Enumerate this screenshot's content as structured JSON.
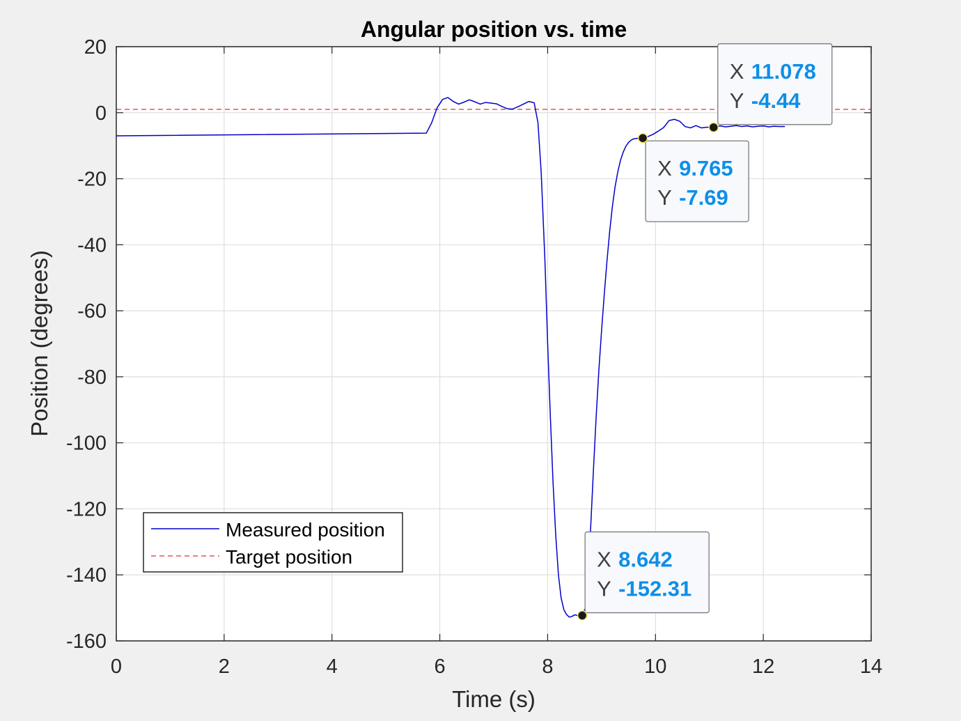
{
  "chart_data": {
    "type": "line",
    "title": "Angular position vs. time",
    "xlabel": "Time (s)",
    "ylabel": "Position (degrees)",
    "xlim": [
      0,
      14
    ],
    "ylim": [
      -160,
      20
    ],
    "xticks": [
      0,
      2,
      4,
      6,
      8,
      10,
      12,
      14
    ],
    "yticks": [
      20,
      0,
      -20,
      -40,
      -60,
      -80,
      -100,
      -120,
      -140,
      -160
    ],
    "grid": true,
    "legend": {
      "placement": "bottom-left"
    },
    "colors": {
      "measured": "#0000cc",
      "target": "#e8525a",
      "tip_value": "#0d8fe8"
    },
    "series": [
      {
        "name": "Measured position",
        "style": "solid",
        "x": [
          0,
          5.75,
          5.85,
          5.95,
          6.05,
          6.15,
          6.25,
          6.35,
          6.45,
          6.55,
          6.65,
          6.75,
          6.85,
          6.95,
          7.05,
          7.15,
          7.25,
          7.35,
          7.45,
          7.55,
          7.65,
          7.75,
          7.82,
          7.88,
          7.95,
          8.0,
          8.05,
          8.1,
          8.15,
          8.2,
          8.25,
          8.3,
          8.35,
          8.4,
          8.45,
          8.5,
          8.55,
          8.6,
          8.642,
          8.7,
          8.75,
          8.8,
          8.85,
          8.9,
          8.95,
          9.0,
          9.05,
          9.1,
          9.15,
          9.2,
          9.25,
          9.3,
          9.35,
          9.4,
          9.45,
          9.5,
          9.55,
          9.6,
          9.65,
          9.7,
          9.765,
          9.85,
          9.95,
          10.05,
          10.15,
          10.25,
          10.35,
          10.45,
          10.55,
          10.65,
          10.75,
          10.85,
          10.95,
          11.078,
          11.2,
          11.3,
          11.4,
          11.5,
          11.6,
          11.7,
          11.8,
          11.9,
          12.0,
          12.1,
          12.2,
          12.3,
          12.4
        ],
        "y": [
          -7,
          -6.2,
          -3,
          1.5,
          4,
          4.6,
          3.4,
          2.6,
          3.2,
          3.9,
          3.3,
          2.6,
          3.1,
          2.9,
          2.7,
          1.9,
          1.2,
          1.1,
          1.8,
          2.6,
          3.4,
          3.0,
          -3,
          -18,
          -45,
          -70,
          -92,
          -112,
          -128,
          -140,
          -147,
          -150.5,
          -152,
          -152.8,
          -152.6,
          -152.1,
          -152.3,
          -152.4,
          -152.31,
          -150,
          -140,
          -125,
          -108,
          -92,
          -78,
          -66,
          -55,
          -45,
          -36,
          -28.5,
          -22.5,
          -18,
          -14.5,
          -12,
          -10.2,
          -9,
          -8.3,
          -7.9,
          -7.8,
          -7.7,
          -7.69,
          -7.3,
          -6.6,
          -5.6,
          -4.5,
          -2.4,
          -2.0,
          -2.6,
          -4.2,
          -4.6,
          -3.9,
          -4.6,
          -4.4,
          -4.44,
          -4.0,
          -4.3,
          -4.1,
          -3.9,
          -4.2,
          -4.0,
          -4.3,
          -4.1,
          -4.0,
          -4.3,
          -4.1,
          -4.2,
          -4.2
        ]
      },
      {
        "name": "Target position",
        "style": "dashed",
        "x": [
          0,
          14
        ],
        "y": [
          1,
          1
        ]
      }
    ],
    "datatips": [
      {
        "x_label": "X",
        "x_value": "8.642",
        "y_label": "Y",
        "y_value": "-152.31",
        "x": 8.642,
        "y": -152.31
      },
      {
        "x_label": "X",
        "x_value": "9.765",
        "y_label": "Y",
        "y_value": "-7.69",
        "x": 9.765,
        "y": -7.69
      },
      {
        "x_label": "X",
        "x_value": "11.078",
        "y_label": "Y",
        "y_value": "-4.44",
        "x": 11.078,
        "y": -4.44
      }
    ]
  }
}
